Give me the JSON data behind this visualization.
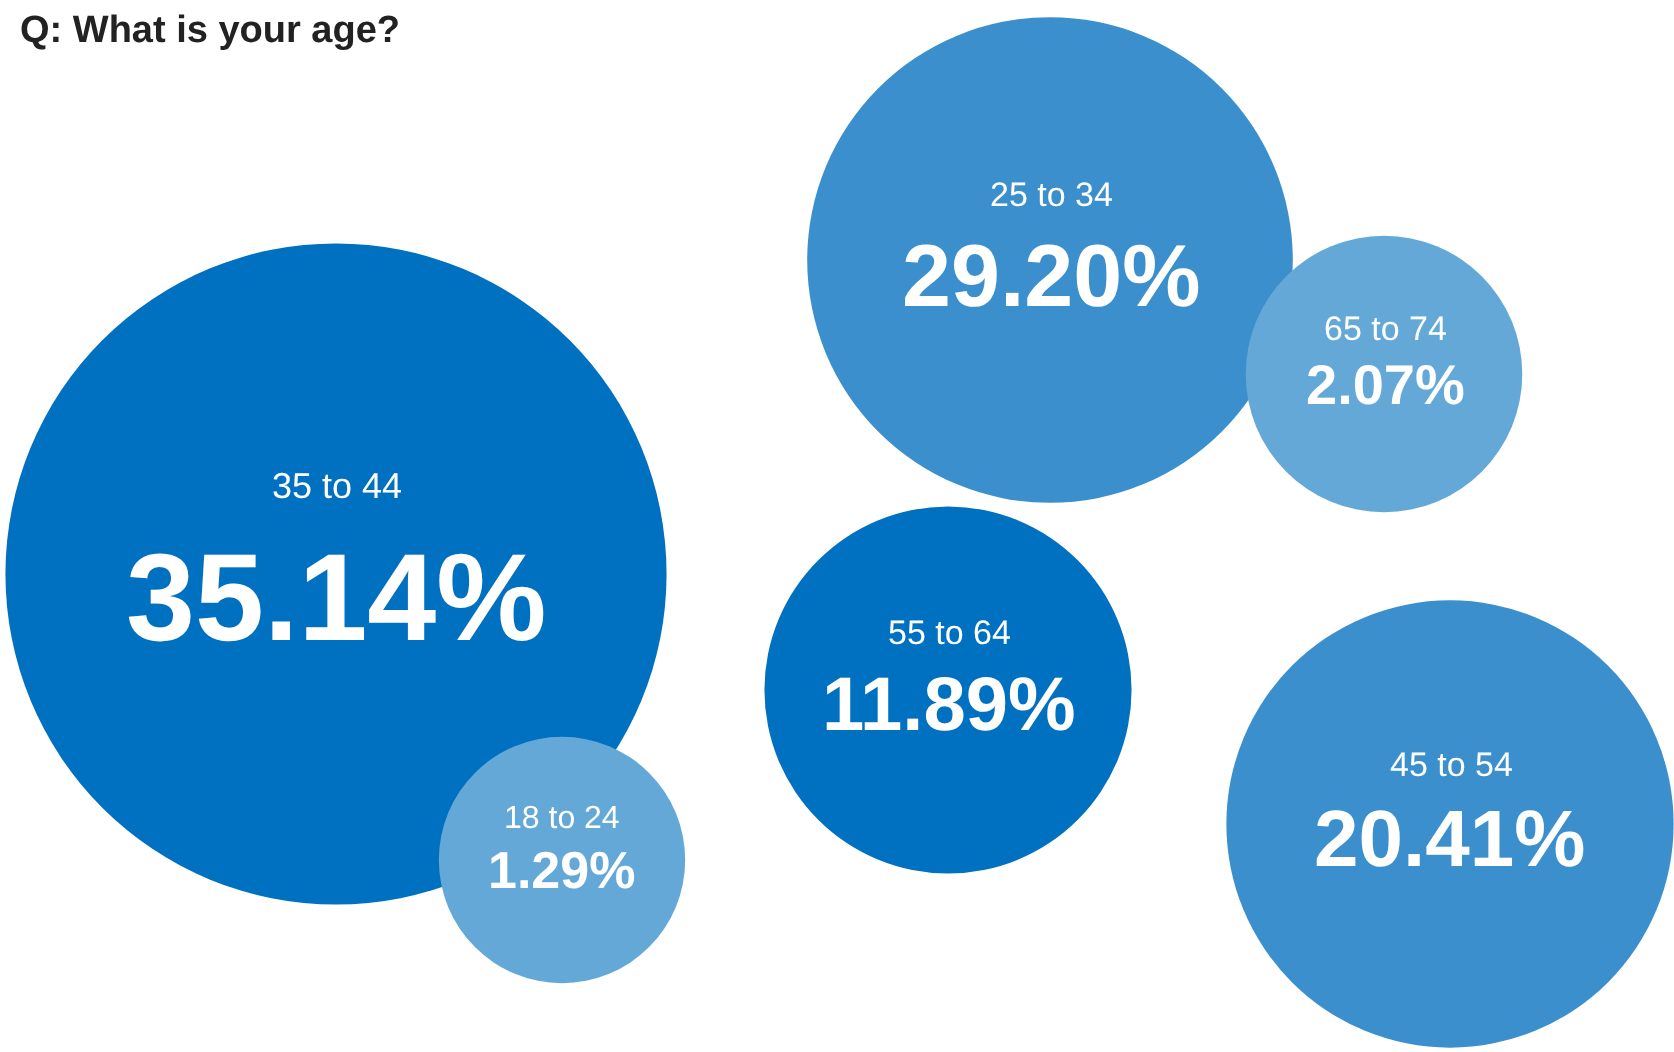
{
  "chart_data": {
    "type": "other",
    "title": "Q: What is your age?",
    "categories": [
      "18 to 24",
      "25 to 34",
      "35 to 44",
      "45 to 54",
      "55 to 64",
      "65 to 74"
    ],
    "values": [
      1.29,
      29.2,
      35.14,
      20.41,
      11.89,
      2.07
    ],
    "value_labels": [
      "1.29%",
      "29.20%",
      "35.14%",
      "20.41%",
      "11.89%",
      "2.07%"
    ],
    "colors": [
      "#64a8d8",
      "#3a8fcc",
      "#0070c0",
      "#3a8fcc",
      "#0070c0",
      "#64a8d8"
    ],
    "legend": false
  }
}
